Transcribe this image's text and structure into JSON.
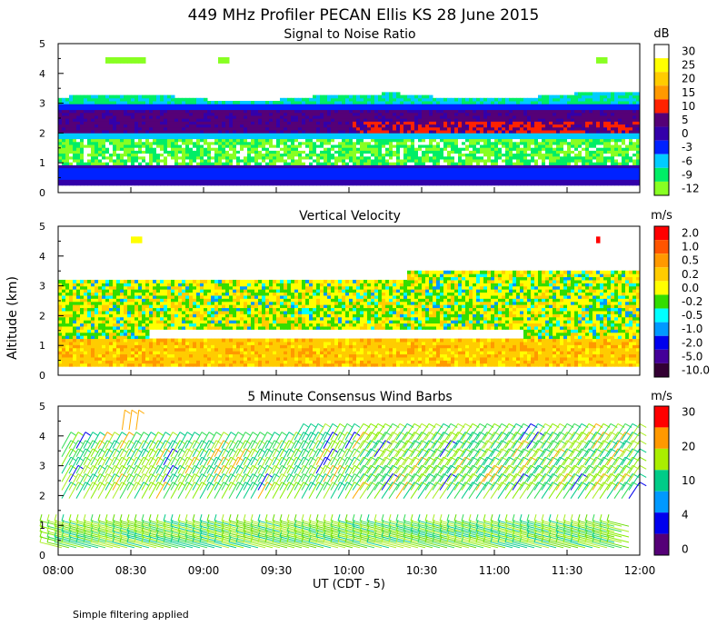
{
  "title": "449 MHz Profiler PECAN Ellis KS 28 June 2015",
  "ylabel": "Altitude (km)",
  "xlabel": "UT  (CDT - 5)",
  "footnote": "Simple filtering applied",
  "x_ticks": [
    "08:00",
    "08:30",
    "09:00",
    "09:30",
    "10:00",
    "10:30",
    "11:00",
    "11:30",
    "12:00"
  ],
  "y_ticks": [
    "0",
    "1",
    "2",
    "3",
    "4",
    "5"
  ],
  "chart_data": [
    {
      "type": "heatmap",
      "title": "Signal to Noise Ratio",
      "units": "dB",
      "x": "time 08:00-12:00 UT",
      "y": "altitude 0-5 km",
      "ylim": [
        0,
        5
      ],
      "colorbar_ticks": [
        "30",
        "25",
        "20",
        "15",
        "10",
        "5",
        "0",
        "-3",
        "-6",
        "-9",
        "-12"
      ],
      "colors": [
        "#ffffff",
        "#ffff00",
        "#ffcc00",
        "#ff9900",
        "#ff2200",
        "#550077",
        "#3300aa",
        "#0022ff",
        "#00ccff",
        "#00ee66",
        "#88ff22"
      ],
      "layers": [
        {
          "altitude_km": [
            0.3,
            0.9
          ],
          "snr_db": -3,
          "note": "low blue band"
        },
        {
          "altitude_km": [
            1.0,
            1.8
          ],
          "snr_db": -9
        },
        {
          "altitude_km": [
            2.0,
            2.9
          ],
          "snr_db": 5,
          "note": "strong purple band with red core near 2.0-2.3 km after 10:15"
        },
        {
          "altitude_km": [
            2.9,
            3.2
          ],
          "snr_db": -6
        },
        {
          "altitude_km": [
            4.3,
            4.5
          ],
          "snr_db": -12,
          "note": "isolated echoes"
        }
      ]
    },
    {
      "type": "heatmap",
      "title": "Vertical Velocity",
      "units": "m/s",
      "x": "time 08:00-12:00 UT",
      "y": "altitude 0-5 km",
      "ylim": [
        0,
        5
      ],
      "colorbar_ticks": [
        "2.0",
        "1.0",
        "0.5",
        "0.2",
        "0.0",
        "-0.2",
        "-0.5",
        "-1.0",
        "-2.0",
        "-5.0",
        "-10.0"
      ],
      "colors": [
        "#ff0000",
        "#ff5500",
        "#ff9900",
        "#ffcc00",
        "#ffff00",
        "#33dd00",
        "#00ffff",
        "#0099ff",
        "#0000ee",
        "#440099",
        "#330033"
      ],
      "layers": [
        {
          "altitude_km": [
            0.3,
            1.2
          ],
          "w_ms": 0.3
        },
        {
          "altitude_km": [
            1.4,
            3.2
          ],
          "w_ms": 0.0,
          "note": "mixed yellow/green, echo top rises to ~3.5 km after 10:15"
        }
      ]
    },
    {
      "type": "wind_barbs",
      "title": "5 Minute Consensus Wind Barbs",
      "units": "m/s",
      "x": "time 08:00-12:00 UT",
      "y": "altitude 0-5 km",
      "ylim": [
        0,
        5
      ],
      "colorbar_ticks": [
        "30",
        "20",
        "10",
        "4",
        "0"
      ],
      "colors": [
        "#ff0000",
        "#ff9900",
        "#aaee00",
        "#00cc88",
        "#0099ff",
        "#0000ee",
        "#550077"
      ],
      "layers": [
        {
          "altitude_km": [
            0.2,
            1.0
          ],
          "speed_ms": 12
        },
        {
          "altitude_km": [
            1.8,
            3.8
          ],
          "speed_ms": 12
        }
      ]
    }
  ]
}
